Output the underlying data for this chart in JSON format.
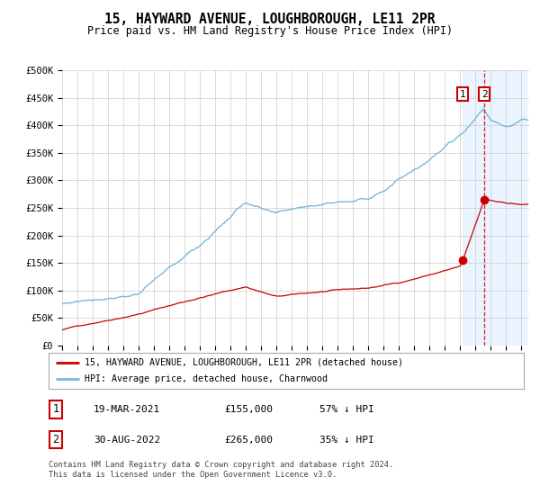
{
  "title": "15, HAYWARD AVENUE, LOUGHBOROUGH, LE11 2PR",
  "subtitle": "Price paid vs. HM Land Registry's House Price Index (HPI)",
  "hpi_color": "#7ab8d9",
  "price_color": "#cc0000",
  "marker_color": "#cc0000",
  "background_color": "#ffffff",
  "grid_color": "#cccccc",
  "shade_color": "#ddeeff",
  "dashed_line_color": "#dd0000",
  "ylim": [
    0,
    500000
  ],
  "yticks": [
    0,
    50000,
    100000,
    150000,
    200000,
    250000,
    300000,
    350000,
    400000,
    450000,
    500000
  ],
  "transaction1": {
    "date": "19-MAR-2021",
    "price": 155000,
    "label": "1",
    "hpi_pct": "57% ↓ HPI"
  },
  "transaction2": {
    "date": "30-AUG-2022",
    "price": 265000,
    "label": "2",
    "hpi_pct": "35% ↓ HPI"
  },
  "legend_line1": "15, HAYWARD AVENUE, LOUGHBOROUGH, LE11 2PR (detached house)",
  "legend_line2": "HPI: Average price, detached house, Charnwood",
  "footer": "Contains HM Land Registry data © Crown copyright and database right 2024.\nThis data is licensed under the Open Government Licence v3.0.",
  "x_start_year": 1995,
  "x_end_year": 2025,
  "t1_year": 2021.17,
  "t2_year": 2022.58,
  "t1_price": 155000,
  "t2_price": 265000
}
